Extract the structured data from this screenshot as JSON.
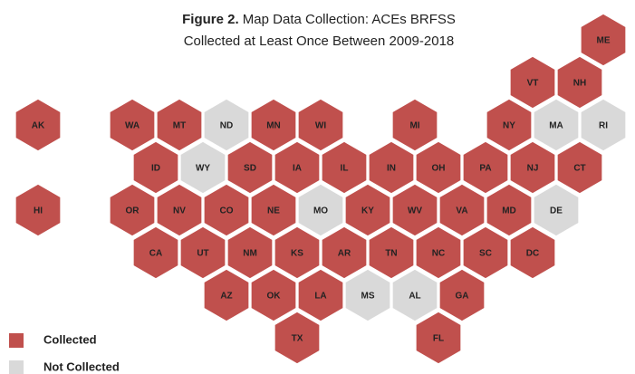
{
  "title": {
    "bold": "Figure 2.",
    "line1": "Map Data Collection: ACEs BRFSS",
    "line2": "Collected at Least Once Between 2009-2018"
  },
  "legend": [
    {
      "label": "Collected",
      "color": "#c0504d"
    },
    {
      "label": "Not Collected",
      "color": "#d9d9d9"
    }
  ],
  "rows": [
    [
      {
        "label": "ME",
        "collected": true
      }
    ],
    [
      {
        "label": "VT",
        "collected": true
      },
      {
        "label": "NH",
        "collected": true
      }
    ],
    [
      {
        "label": "AK",
        "collected": true
      },
      null,
      {
        "label": "WA",
        "collected": true
      },
      {
        "label": "MT",
        "collected": true
      },
      {
        "label": "ND",
        "collected": false
      },
      {
        "label": "MN",
        "collected": true
      },
      {
        "label": "WI",
        "collected": true
      },
      null,
      {
        "label": "MI",
        "collected": true
      },
      null,
      {
        "label": "NY",
        "collected": true
      },
      {
        "label": "MA",
        "collected": false
      },
      {
        "label": "RI",
        "collected": false
      }
    ],
    [
      {
        "label": "ID",
        "collected": true
      },
      {
        "label": "WY",
        "collected": false
      },
      {
        "label": "SD",
        "collected": true
      },
      {
        "label": "IA",
        "collected": true
      },
      {
        "label": "IL",
        "collected": true
      },
      {
        "label": "IN",
        "collected": true
      },
      {
        "label": "OH",
        "collected": true
      },
      {
        "label": "PA",
        "collected": true
      },
      {
        "label": "NJ",
        "collected": true
      },
      {
        "label": "CT",
        "collected": true
      }
    ],
    [
      {
        "label": "HI",
        "collected": true
      },
      null,
      {
        "label": "OR",
        "collected": true
      },
      {
        "label": "NV",
        "collected": true
      },
      {
        "label": "CO",
        "collected": true
      },
      {
        "label": "NE",
        "collected": true
      },
      {
        "label": "MO",
        "collected": false
      },
      {
        "label": "KY",
        "collected": true
      },
      {
        "label": "WV",
        "collected": true
      },
      {
        "label": "VA",
        "collected": true
      },
      {
        "label": "MD",
        "collected": true
      },
      {
        "label": "DE",
        "collected": false
      }
    ],
    [
      {
        "label": "CA",
        "collected": true
      },
      {
        "label": "UT",
        "collected": true
      },
      {
        "label": "NM",
        "collected": true
      },
      {
        "label": "KS",
        "collected": true
      },
      {
        "label": "AR",
        "collected": true
      },
      {
        "label": "TN",
        "collected": true
      },
      {
        "label": "NC",
        "collected": true
      },
      {
        "label": "SC",
        "collected": true
      },
      {
        "label": "DC",
        "collected": true
      }
    ],
    [
      {
        "label": "AZ",
        "collected": true
      },
      {
        "label": "OK",
        "collected": true
      },
      {
        "label": "LA",
        "collected": true
      },
      {
        "label": "MS",
        "collected": false
      },
      {
        "label": "AL",
        "collected": false
      },
      {
        "label": "GA",
        "collected": true
      }
    ],
    [
      {
        "label": "TX",
        "collected": true
      },
      null,
      null,
      {
        "label": "FL",
        "collected": true
      }
    ]
  ]
}
